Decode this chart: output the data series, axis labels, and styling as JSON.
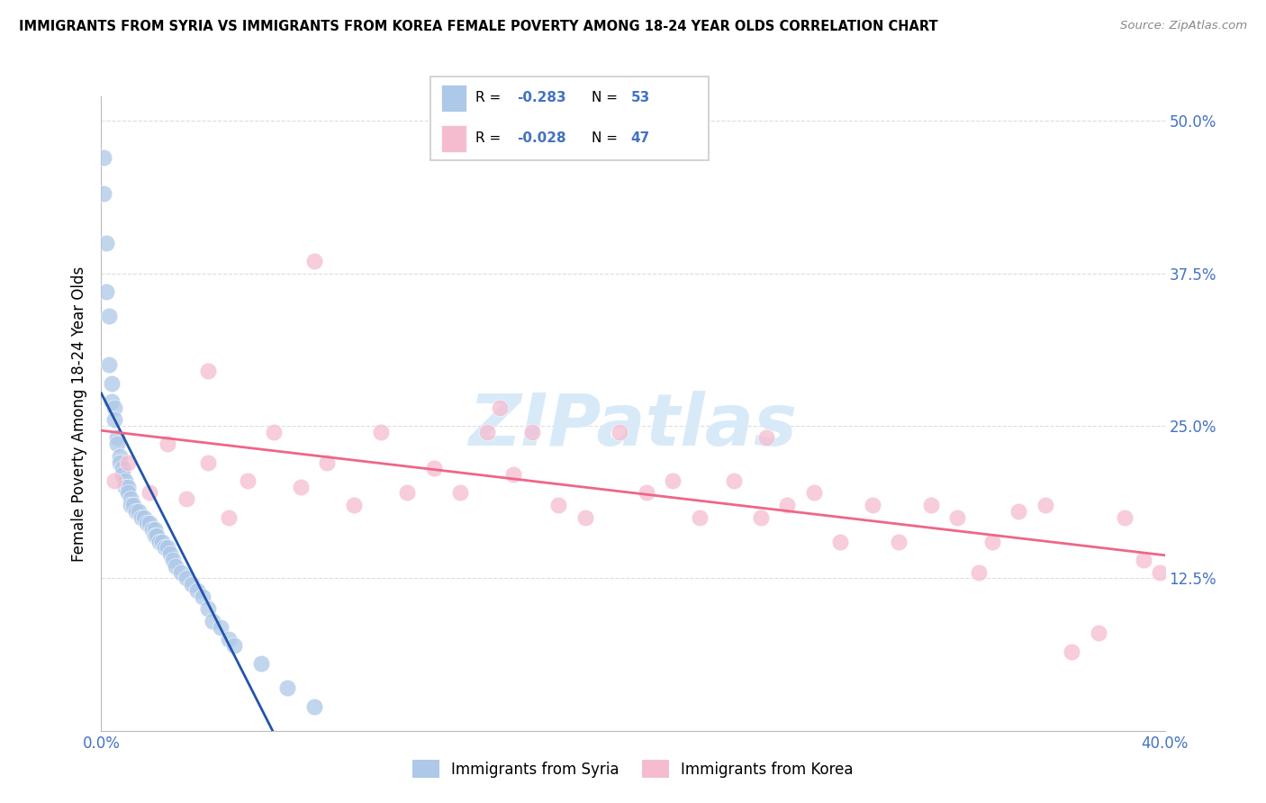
{
  "title": "IMMIGRANTS FROM SYRIA VS IMMIGRANTS FROM KOREA FEMALE POVERTY AMONG 18-24 YEAR OLDS CORRELATION CHART",
  "source": "Source: ZipAtlas.com",
  "ylabel": "Female Poverty Among 18-24 Year Olds",
  "x_range": [
    0.0,
    0.4
  ],
  "y_range": [
    0.0,
    0.52
  ],
  "y_ticks": [
    0.0,
    0.125,
    0.25,
    0.375,
    0.5
  ],
  "y_tick_labels": [
    "",
    "12.5%",
    "25.0%",
    "37.5%",
    "50.0%"
  ],
  "x_tick_left": "0.0%",
  "x_tick_right": "40.0%",
  "syria_R": -0.283,
  "syria_N": 53,
  "korea_R": -0.028,
  "korea_N": 47,
  "syria_color": "#adc8e8",
  "korea_color": "#f5bcd0",
  "syria_line_color": "#2255aa",
  "korea_line_color": "#ee6688",
  "dashed_color": "#cccccc",
  "watermark_text": "ZIPatlas",
  "watermark_color": "#d8eaf8",
  "grid_color": "#dddddd",
  "legend_border_color": "#cccccc",
  "text_blue": "#4472c4",
  "syria_x": [
    0.001,
    0.001,
    0.002,
    0.002,
    0.003,
    0.003,
    0.004,
    0.004,
    0.005,
    0.005,
    0.006,
    0.006,
    0.007,
    0.007,
    0.008,
    0.008,
    0.009,
    0.009,
    0.01,
    0.01,
    0.011,
    0.011,
    0.012,
    0.013,
    0.014,
    0.015,
    0.016,
    0.017,
    0.018,
    0.019,
    0.02,
    0.02,
    0.021,
    0.022,
    0.023,
    0.024,
    0.025,
    0.026,
    0.027,
    0.028,
    0.03,
    0.032,
    0.034,
    0.036,
    0.038,
    0.04,
    0.042,
    0.045,
    0.048,
    0.05,
    0.06,
    0.07,
    0.08
  ],
  "syria_y": [
    0.47,
    0.44,
    0.4,
    0.36,
    0.34,
    0.3,
    0.285,
    0.27,
    0.265,
    0.255,
    0.24,
    0.235,
    0.225,
    0.22,
    0.215,
    0.21,
    0.205,
    0.2,
    0.2,
    0.195,
    0.19,
    0.185,
    0.185,
    0.18,
    0.18,
    0.175,
    0.175,
    0.17,
    0.17,
    0.165,
    0.165,
    0.16,
    0.16,
    0.155,
    0.155,
    0.15,
    0.15,
    0.145,
    0.14,
    0.135,
    0.13,
    0.125,
    0.12,
    0.115,
    0.11,
    0.1,
    0.09,
    0.085,
    0.075,
    0.07,
    0.055,
    0.035,
    0.02
  ],
  "korea_x": [
    0.005,
    0.01,
    0.018,
    0.025,
    0.032,
    0.04,
    0.048,
    0.055,
    0.065,
    0.075,
    0.085,
    0.095,
    0.105,
    0.115,
    0.125,
    0.135,
    0.145,
    0.155,
    0.162,
    0.172,
    0.182,
    0.195,
    0.205,
    0.215,
    0.225,
    0.238,
    0.248,
    0.258,
    0.268,
    0.278,
    0.29,
    0.3,
    0.312,
    0.322,
    0.335,
    0.345,
    0.355,
    0.365,
    0.375,
    0.385,
    0.392,
    0.398,
    0.04,
    0.08,
    0.15,
    0.25,
    0.33
  ],
  "korea_y": [
    0.205,
    0.22,
    0.195,
    0.235,
    0.19,
    0.22,
    0.175,
    0.205,
    0.245,
    0.2,
    0.22,
    0.185,
    0.245,
    0.195,
    0.215,
    0.195,
    0.245,
    0.21,
    0.245,
    0.185,
    0.175,
    0.245,
    0.195,
    0.205,
    0.175,
    0.205,
    0.175,
    0.185,
    0.195,
    0.155,
    0.185,
    0.155,
    0.185,
    0.175,
    0.155,
    0.18,
    0.185,
    0.065,
    0.08,
    0.175,
    0.14,
    0.13,
    0.295,
    0.385,
    0.265,
    0.24,
    0.13
  ]
}
